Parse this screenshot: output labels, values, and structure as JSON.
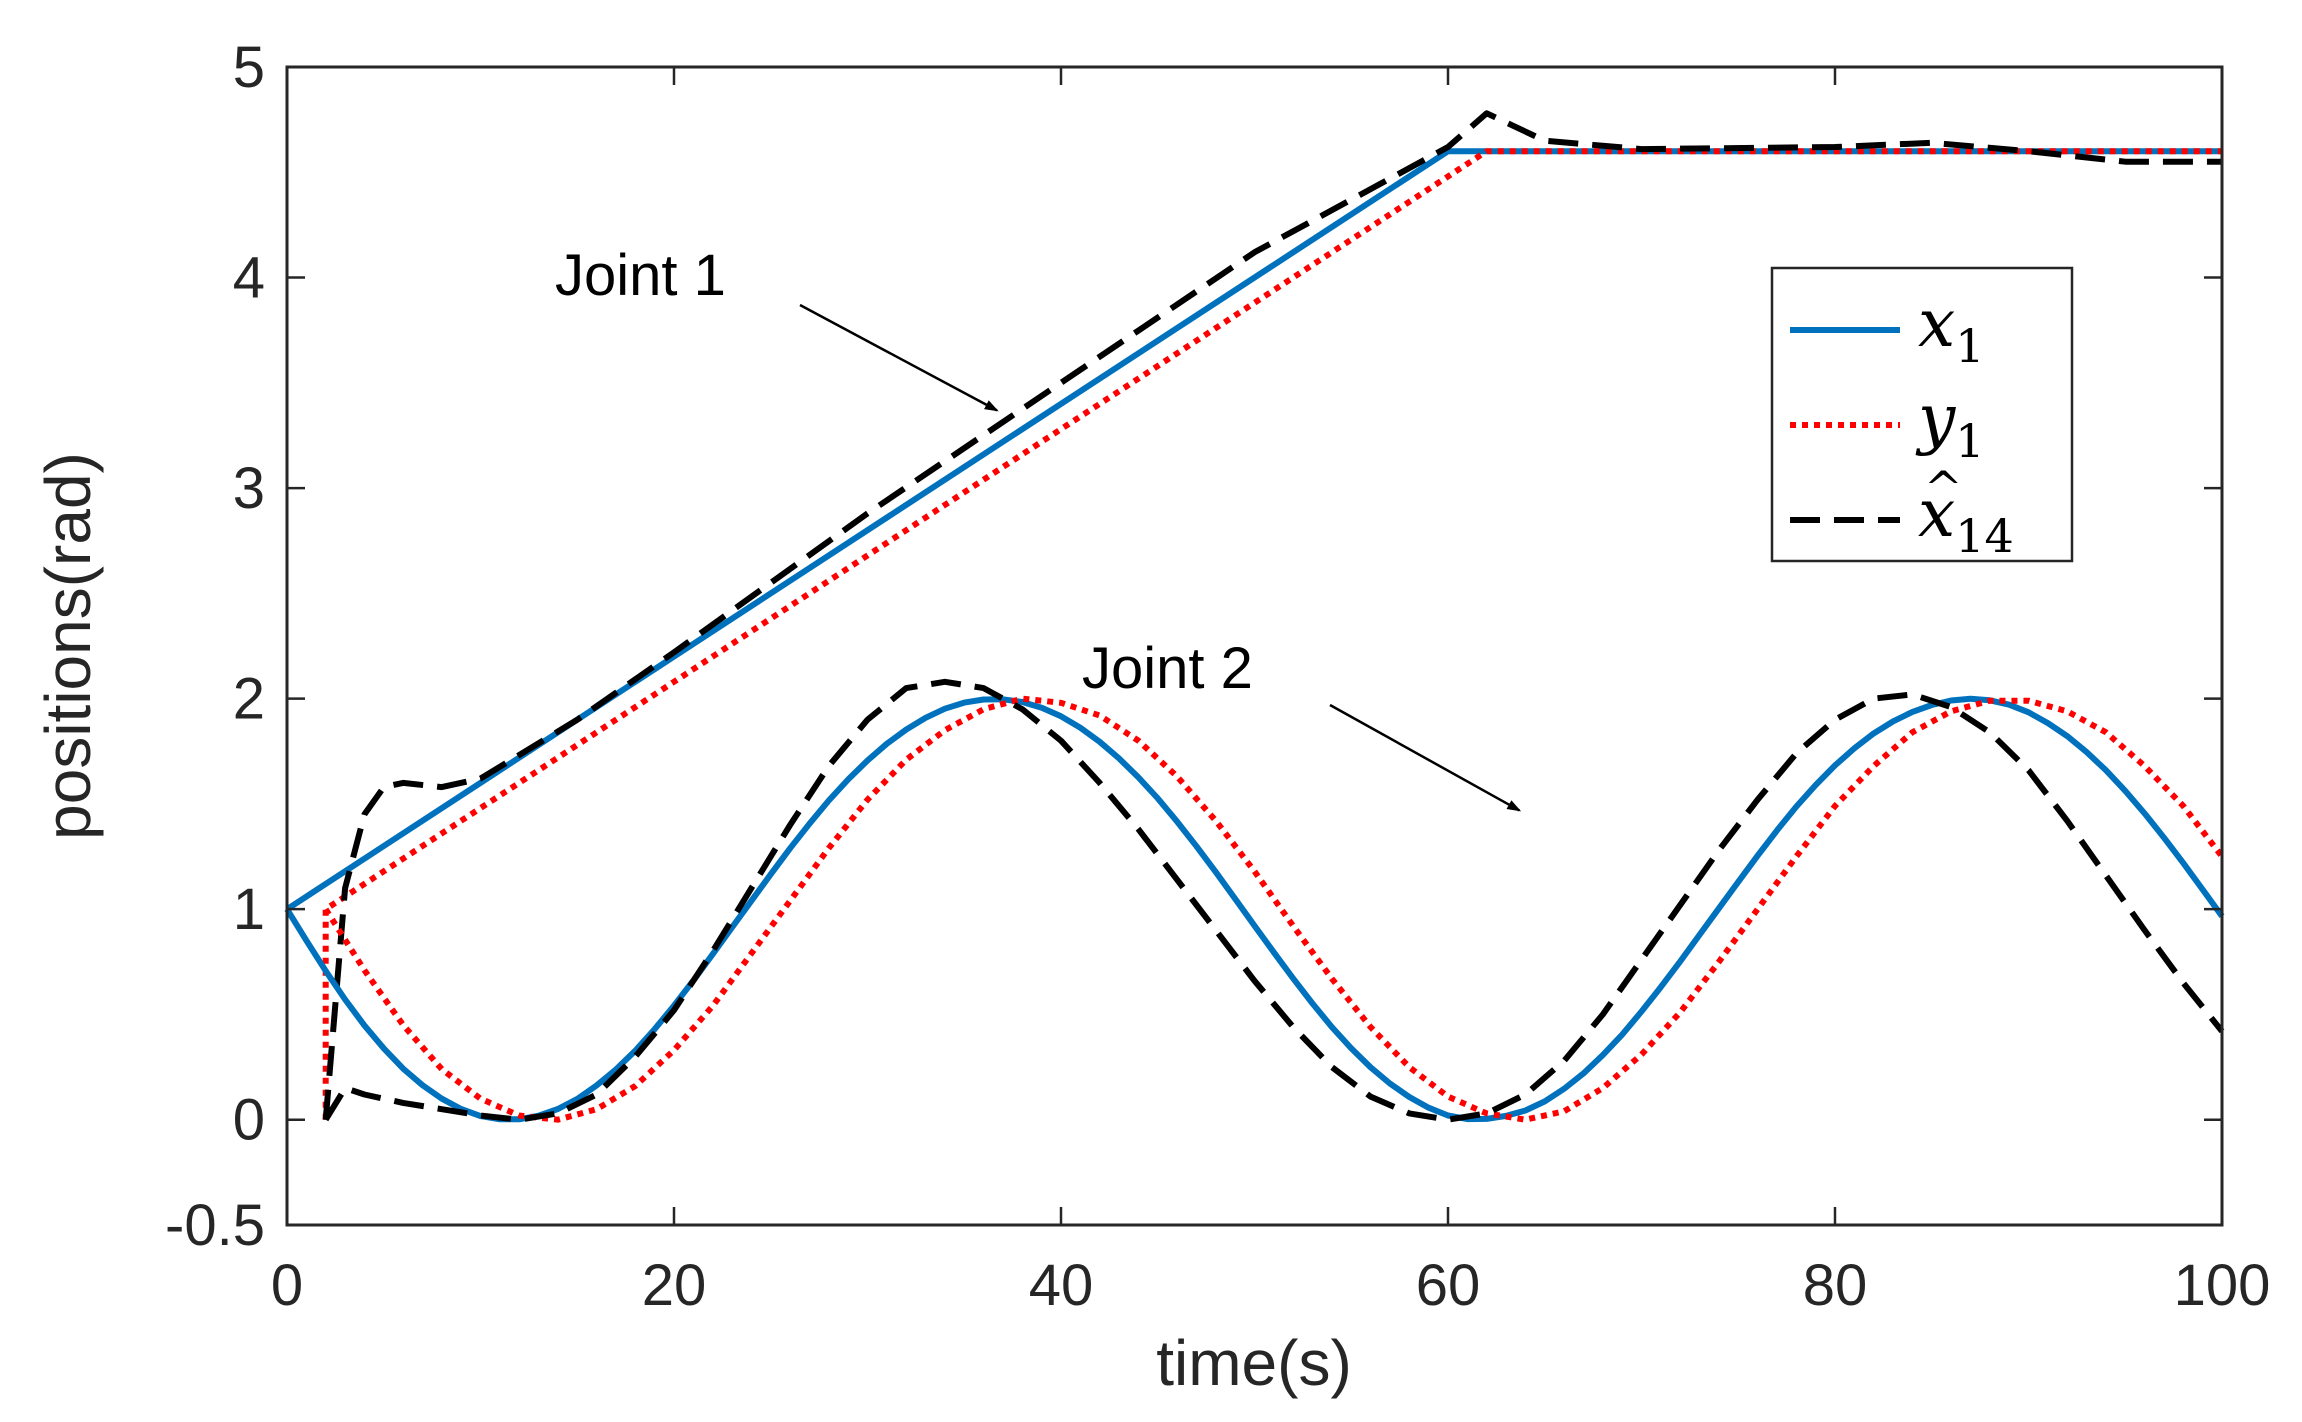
{
  "chart_data": {
    "type": "line",
    "title": "",
    "xlabel": "time(s)",
    "ylabel": "positions(rad)",
    "xlim": [
      0,
      100
    ],
    "ylim": [
      -0.5,
      5
    ],
    "xticks": [
      0,
      20,
      40,
      60,
      80,
      100
    ],
    "xtick_labels": [
      "0",
      "20",
      "40",
      "60",
      "80",
      "100"
    ],
    "yticks": [
      -0.5,
      0,
      1,
      2,
      3,
      4,
      5
    ],
    "ytick_labels": [
      "-0.5",
      "0",
      "1",
      "2",
      "3",
      "4",
      "5"
    ],
    "grid": false,
    "legend_position": "top-right",
    "series": [
      {
        "name": "x1",
        "legend_base": "x",
        "legend_sub": "1",
        "legend_hat": false,
        "color": "#0072BD",
        "dash": "solid",
        "x": [
          0,
          60,
          100
        ],
        "y": [
          1.0,
          4.6,
          4.6
        ]
      },
      {
        "name": "y1",
        "legend_base": "y",
        "legend_sub": "1",
        "legend_hat": false,
        "color": "#FF0000",
        "dash": "dotted",
        "x": [
          2,
          2,
          62,
          100
        ],
        "y": [
          0,
          1.0,
          4.6,
          4.6
        ]
      },
      {
        "name": "x̂14",
        "legend_base": "x",
        "legend_sub": "14",
        "legend_hat": true,
        "color": "#000000",
        "dash": "dashed",
        "x": [
          2,
          3,
          4,
          5,
          6,
          8,
          10,
          15,
          20,
          30,
          40,
          50,
          60,
          62,
          65,
          70,
          80,
          85,
          90,
          95,
          100
        ],
        "y": [
          0,
          1.1,
          1.45,
          1.58,
          1.6,
          1.58,
          1.62,
          1.9,
          2.22,
          2.88,
          3.5,
          4.12,
          4.62,
          4.78,
          4.65,
          4.61,
          4.62,
          4.64,
          4.6,
          4.55,
          4.55
        ]
      },
      {
        "name": "x1 joint 2",
        "color": "#0072BD",
        "dash": "solid",
        "x": [
          0,
          1,
          2,
          3,
          4,
          5,
          6,
          7,
          8,
          9,
          10,
          11,
          12,
          13,
          14,
          15,
          16,
          17,
          18,
          19,
          20,
          21,
          22,
          23,
          24,
          25,
          26,
          27,
          28,
          29,
          30,
          31,
          32,
          33,
          34,
          35,
          36,
          37,
          38,
          39,
          40,
          41,
          42,
          43,
          44,
          45,
          46,
          47,
          48,
          49,
          50,
          51,
          52,
          53,
          54,
          55,
          56,
          57,
          58,
          59,
          60,
          61,
          62,
          63,
          64,
          65,
          66,
          67,
          68,
          69,
          70,
          71,
          72,
          73,
          74,
          75,
          76,
          77,
          78,
          79,
          80,
          81,
          82,
          83,
          84,
          85,
          86,
          87,
          88,
          89,
          90,
          91,
          92,
          93,
          94,
          95,
          96,
          97,
          98,
          99,
          100
        ],
        "y": [
          1.0,
          0.851,
          0.707,
          0.571,
          0.448,
          0.339,
          0.243,
          0.164,
          0.1,
          0.051,
          0.017,
          0.002,
          0.002,
          0.019,
          0.051,
          0.099,
          0.163,
          0.239,
          0.328,
          0.43,
          0.542,
          0.661,
          0.786,
          0.913,
          1.04,
          1.166,
          1.289,
          1.406,
          1.516,
          1.616,
          1.706,
          1.786,
          1.853,
          1.909,
          1.952,
          1.981,
          1.996,
          1.997,
          1.984,
          1.957,
          1.916,
          1.862,
          1.795,
          1.716,
          1.626,
          1.526,
          1.416,
          1.299,
          1.176,
          1.049,
          0.921,
          0.795,
          0.671,
          0.552,
          0.44,
          0.339,
          0.249,
          0.172,
          0.108,
          0.057,
          0.02,
          0.003,
          0.004,
          0.018,
          0.044,
          0.087,
          0.147,
          0.22,
          0.307,
          0.404,
          0.514,
          0.63,
          0.752,
          0.878,
          1.004,
          1.13,
          1.254,
          1.374,
          1.487,
          1.59,
          1.683,
          1.764,
          1.835,
          1.892,
          1.937,
          1.97,
          1.991,
          1.999,
          1.992,
          1.971,
          1.935,
          1.884,
          1.822,
          1.746,
          1.66,
          1.562,
          1.455,
          1.34,
          1.219,
          1.093,
          0.966
        ]
      },
      {
        "name": "y1 joint 2",
        "color": "#FF0000",
        "dash": "dotted",
        "x": [
          2,
          4,
          6,
          8,
          10,
          12,
          14,
          16,
          18,
          20,
          22,
          24,
          26,
          28,
          30,
          32,
          34,
          36,
          38,
          40,
          42,
          44,
          46,
          48,
          50,
          52,
          54,
          56,
          58,
          60,
          62,
          64,
          66,
          68,
          70,
          72,
          74,
          76,
          78,
          80,
          82,
          84,
          86,
          88,
          90,
          92,
          94,
          96,
          98,
          100
        ],
        "y": [
          1.0,
          0.71,
          0.45,
          0.24,
          0.1,
          0.02,
          0.0,
          0.05,
          0.16,
          0.33,
          0.54,
          0.79,
          1.04,
          1.29,
          1.52,
          1.71,
          1.85,
          1.95,
          2.0,
          1.98,
          1.92,
          1.8,
          1.63,
          1.42,
          1.18,
          0.92,
          0.67,
          0.44,
          0.25,
          0.11,
          0.03,
          0.0,
          0.04,
          0.15,
          0.31,
          0.51,
          0.75,
          1.0,
          1.25,
          1.49,
          1.68,
          1.84,
          1.94,
          1.99,
          1.99,
          1.94,
          1.84,
          1.68,
          1.49,
          1.25
        ]
      },
      {
        "name": "x̂14 joint 2",
        "color": "#000000",
        "dash": "dashed",
        "x": [
          2,
          3,
          4,
          6,
          8,
          10,
          12,
          14,
          16,
          18,
          20,
          22,
          24,
          26,
          28,
          30,
          32,
          34,
          36,
          38,
          40,
          42,
          44,
          46,
          48,
          50,
          52,
          54,
          56,
          58,
          60,
          62,
          64,
          66,
          68,
          70,
          72,
          74,
          76,
          78,
          80,
          82,
          84,
          86,
          88,
          90,
          92,
          94,
          96,
          98,
          100
        ],
        "y": [
          0,
          0.15,
          0.12,
          0.08,
          0.05,
          0.02,
          0.0,
          0.03,
          0.12,
          0.3,
          0.52,
          0.8,
          1.1,
          1.4,
          1.68,
          1.9,
          2.05,
          2.08,
          2.05,
          1.95,
          1.8,
          1.6,
          1.38,
          1.14,
          0.9,
          0.66,
          0.44,
          0.25,
          0.11,
          0.03,
          0.0,
          0.03,
          0.12,
          0.28,
          0.5,
          0.76,
          1.02,
          1.28,
          1.52,
          1.74,
          1.9,
          2.0,
          2.02,
          1.96,
          1.84,
          1.66,
          1.42,
          1.16,
          0.9,
          0.65,
          0.42
        ]
      }
    ]
  },
  "annotations": [
    {
      "text": "Joint 1",
      "target_x": 37,
      "target_y": 3.35
    },
    {
      "text": "Joint 2",
      "target_x": 64,
      "target_y": 1.45
    }
  ]
}
